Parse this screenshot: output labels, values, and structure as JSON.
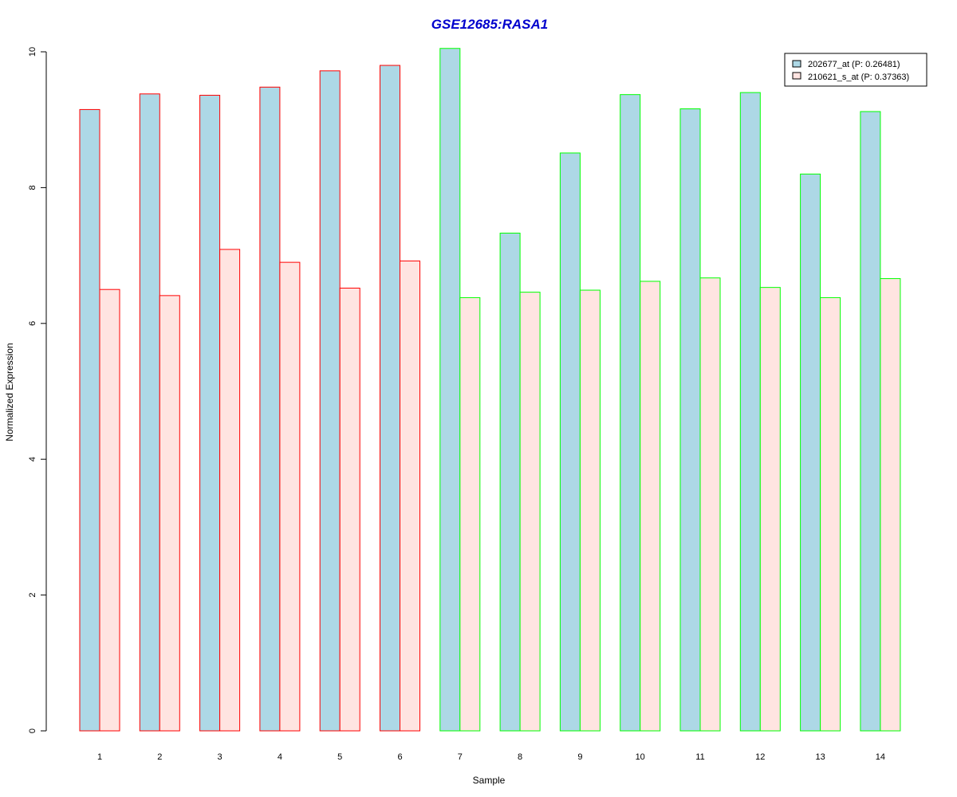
{
  "chart_data": {
    "type": "bar",
    "title": "GSE12685:RASA1",
    "xlabel": "Sample",
    "ylabel": "Normalized Expression",
    "categories": [
      "1",
      "2",
      "3",
      "4",
      "5",
      "6",
      "7",
      "8",
      "9",
      "10",
      "11",
      "12",
      "13",
      "14"
    ],
    "ylim": [
      0,
      10
    ],
    "yticks": [
      0,
      2,
      4,
      6,
      8,
      10
    ],
    "series": [
      {
        "name": "202677_at (P: 0.26481)",
        "fill": "#add8e6",
        "values": [
          9.15,
          9.38,
          9.36,
          9.48,
          9.72,
          9.8,
          10.05,
          7.33,
          8.51,
          9.37,
          9.16,
          9.4,
          8.2,
          9.12
        ]
      },
      {
        "name": "210621_s_at (P: 0.37363)",
        "fill": "#ffe4e1",
        "values": [
          6.5,
          6.41,
          7.09,
          6.9,
          6.52,
          6.92,
          6.38,
          6.46,
          6.49,
          6.62,
          6.67,
          6.53,
          6.38,
          6.66
        ]
      }
    ],
    "group_border_colors": [
      "#ff0000",
      "#ff0000",
      "#ff0000",
      "#ff0000",
      "#ff0000",
      "#ff0000",
      "#00ff00",
      "#00ff00",
      "#00ff00",
      "#00ff00",
      "#00ff00",
      "#00ff00",
      "#00ff00",
      "#00ff00"
    ],
    "title_color": "#0000cd",
    "legend_position": "top-right",
    "grid": false
  }
}
